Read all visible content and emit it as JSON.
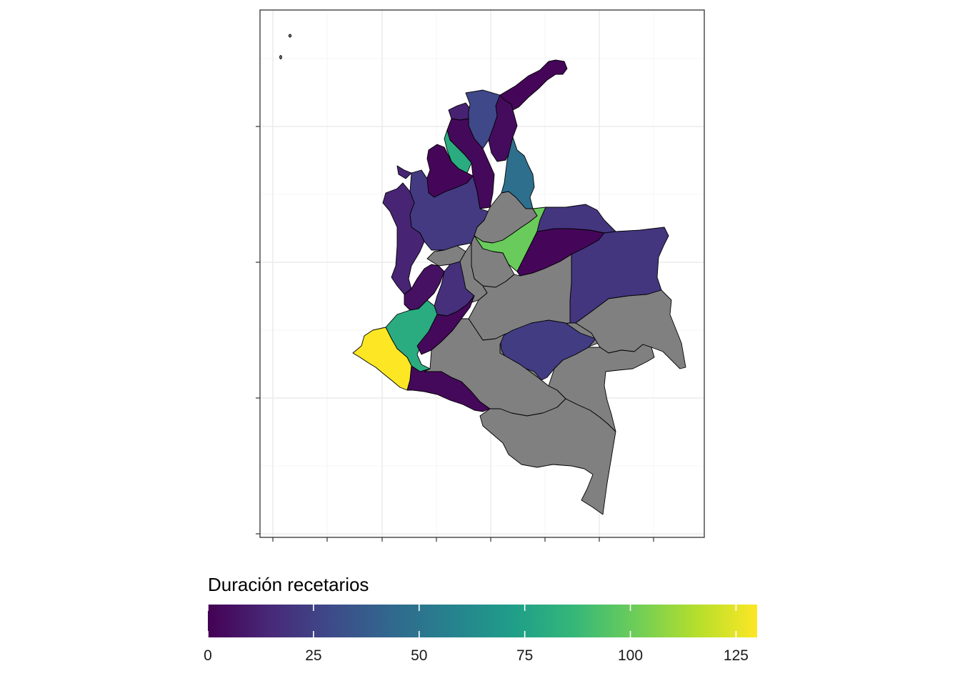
{
  "legend": {
    "title": "Duración recetarios",
    "breaks": [
      0,
      25,
      50,
      75,
      100,
      125
    ],
    "break_labels": [
      "0",
      "25",
      "50",
      "75",
      "100",
      "125"
    ],
    "range": [
      0,
      130
    ],
    "palette": [
      "#440154",
      "#482878",
      "#3E4A89",
      "#31688E",
      "#26828E",
      "#1F9E89",
      "#35B779",
      "#6DCD59",
      "#B4DE2C",
      "#FDE725"
    ],
    "na_color": "#808080"
  },
  "chart_data": {
    "type": "choropleth",
    "title": "",
    "xlabel": "",
    "ylabel": "",
    "fill_variable": "Duración recetarios",
    "grid": true,
    "legend_position": "bottom",
    "regions": [
      {
        "id": "la-guajira",
        "value": 2
      },
      {
        "id": "magdalena",
        "value": 4
      },
      {
        "id": "atlantico",
        "value": 12
      },
      {
        "id": "cesar",
        "value": 28
      },
      {
        "id": "bolivar",
        "value": 3
      },
      {
        "id": "sucre",
        "value": 80
      },
      {
        "id": "cordoba",
        "value": 2
      },
      {
        "id": "norte-de-santander",
        "value": 47
      },
      {
        "id": "antioquia",
        "value": 22
      },
      {
        "id": "santander",
        "value": null
      },
      {
        "id": "arauca",
        "value": 100
      },
      {
        "id": "casanare",
        "value": 2
      },
      {
        "id": "vichada",
        "value": 20
      },
      {
        "id": "choco",
        "value": 13
      },
      {
        "id": "caldas-risaralda",
        "value": null
      },
      {
        "id": "boyaca",
        "value": null
      },
      {
        "id": "cundinamarca",
        "value": null
      },
      {
        "id": "valle-del-cauca",
        "value": 6
      },
      {
        "id": "tolima",
        "value": 18
      },
      {
        "id": "meta",
        "value": null
      },
      {
        "id": "cauca",
        "value": 80
      },
      {
        "id": "huila",
        "value": 3
      },
      {
        "id": "narino",
        "value": 130
      },
      {
        "id": "putumayo",
        "value": 3
      },
      {
        "id": "guaviare",
        "value": null
      },
      {
        "id": "guainia",
        "value": 23
      },
      {
        "id": "vaupes",
        "value": null
      },
      {
        "id": "caqueta",
        "value": null
      },
      {
        "id": "amazonas",
        "value": null
      },
      {
        "id": "guainia-east",
        "value": null
      }
    ]
  }
}
